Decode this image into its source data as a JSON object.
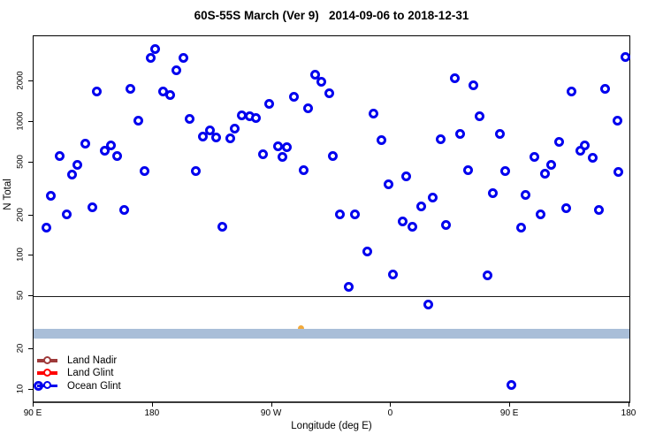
{
  "chart_data": {
    "type": "scatter",
    "title": "60S-55S March (Ver 9)   2014-09-06 to 2018-12-31",
    "xlabel": "Longitude (deg E)",
    "ylabel": "N Total",
    "x_axis": {
      "min": 90,
      "max": 540,
      "ticks": [
        {
          "v": 90,
          "label": "90 E"
        },
        {
          "v": 180,
          "label": "180"
        },
        {
          "v": 270,
          "label": "90 W"
        },
        {
          "v": 360,
          "label": "0"
        },
        {
          "v": 450,
          "label": "90 E"
        },
        {
          "v": 540,
          "label": "180"
        }
      ]
    },
    "y_axis": {
      "scale": "log",
      "min": 8.2,
      "max": 4370,
      "ticks": [
        10,
        20,
        50,
        100,
        200,
        500,
        1000,
        2000
      ]
    },
    "reference_line_y": 50,
    "band": {
      "n_low": 24.2,
      "n_high": 28.6,
      "color": "#a9bed8"
    },
    "hidden_marker": {
      "lon": 291.9,
      "n": 28.4,
      "color": "#f2a93b"
    },
    "legend": [
      {
        "label": "Land Nadir",
        "color": "#9e3a3a"
      },
      {
        "label": "Land Glint",
        "color": "#ff0000"
      },
      {
        "label": "Ocean Glint",
        "color": "#0000ee"
      }
    ],
    "series": [
      {
        "name": "Ocean Glint",
        "color": "#0000ee",
        "points": [
          [
            182.0,
            3530
          ],
          [
            178.7,
            3030
          ],
          [
            203.3,
            3030
          ],
          [
            198.0,
            2450
          ],
          [
            138.0,
            1680
          ],
          [
            163.3,
            1760
          ],
          [
            188.0,
            1680
          ],
          [
            193.3,
            1580
          ],
          [
            169.3,
            1020
          ],
          [
            208.0,
            1050
          ],
          [
            218.0,
            784
          ],
          [
            223.3,
            872
          ],
          [
            228.0,
            772
          ],
          [
            238.7,
            760
          ],
          [
            129.3,
            694
          ],
          [
            144.0,
            606
          ],
          [
            148.7,
            673
          ],
          [
            153.3,
            561
          ],
          [
            110.0,
            553
          ],
          [
            123.3,
            477
          ],
          [
            174.0,
            427
          ],
          [
            212.7,
            433
          ],
          [
            119.1,
            404
          ],
          [
            103.1,
            280
          ],
          [
            134.2,
            232
          ],
          [
            158.7,
            221
          ],
          [
            114.9,
            203
          ],
          [
            100.0,
            162
          ],
          [
            232.7,
            164
          ],
          [
            302.7,
            2250
          ],
          [
            307.5,
            1990
          ],
          [
            313.1,
            1650
          ],
          [
            286.9,
            1540
          ],
          [
            268.2,
            1360
          ],
          [
            297.1,
            1260
          ],
          [
            247.1,
            1120
          ],
          [
            253.1,
            1100
          ],
          [
            258.0,
            1070
          ],
          [
            242.0,
            894
          ],
          [
            274.5,
            663
          ],
          [
            281.3,
            653
          ],
          [
            263.1,
            570
          ],
          [
            278.0,
            551
          ],
          [
            346.9,
            1150
          ],
          [
            352.7,
            727
          ],
          [
            316.0,
            556
          ],
          [
            294.2,
            440
          ],
          [
            358.2,
            343
          ],
          [
            371.5,
            394
          ],
          [
            321.5,
            205
          ],
          [
            332.5,
            205
          ],
          [
            383.1,
            233
          ],
          [
            368.9,
            181
          ],
          [
            376.0,
            164
          ],
          [
            342.0,
            108
          ],
          [
            361.5,
            73
          ],
          [
            328.0,
            59
          ],
          [
            536.9,
            3050
          ],
          [
            408.2,
            2120
          ],
          [
            422.2,
            1870
          ],
          [
            496.5,
            1690
          ],
          [
            521.5,
            1760
          ],
          [
            426.5,
            1110
          ],
          [
            531.2,
            1020
          ],
          [
            397.3,
            741
          ],
          [
            412.0,
            820
          ],
          [
            442.0,
            820
          ],
          [
            487.1,
            712
          ],
          [
            502.7,
            607
          ],
          [
            506.0,
            672
          ],
          [
            512.2,
            544
          ],
          [
            468.2,
            548
          ],
          [
            418.2,
            436
          ],
          [
            446.5,
            433
          ],
          [
            480.9,
            482
          ],
          [
            476.5,
            408
          ],
          [
            531.5,
            426
          ],
          [
            391.5,
            272
          ],
          [
            437.1,
            293
          ],
          [
            461.5,
            286
          ],
          [
            401.5,
            169
          ],
          [
            473.1,
            203
          ],
          [
            492.5,
            227
          ],
          [
            516.9,
            220
          ],
          [
            458.2,
            163
          ],
          [
            432.7,
            72
          ],
          [
            387.8,
            43
          ],
          [
            94.0,
            10.7
          ],
          [
            451.1,
            10.8
          ]
        ]
      }
    ]
  }
}
